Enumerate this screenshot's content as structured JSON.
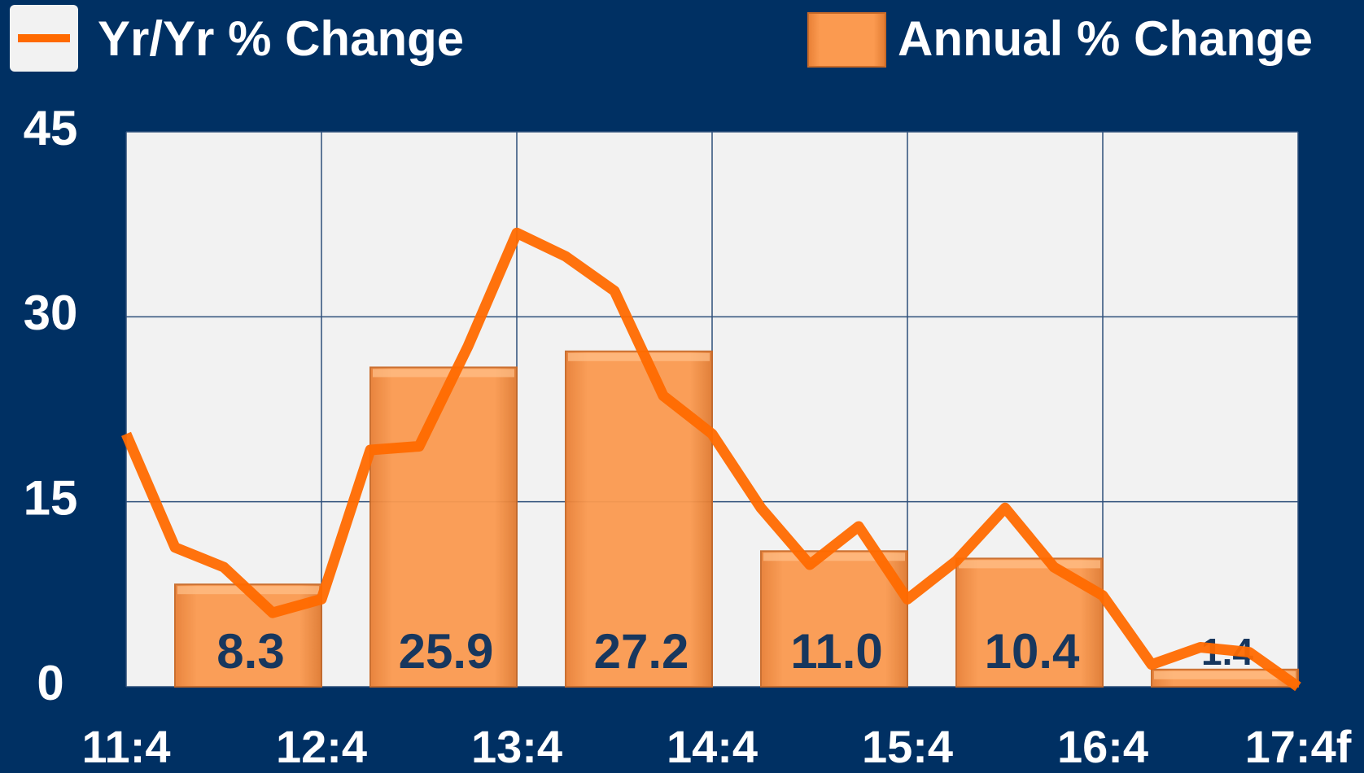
{
  "chart_data": {
    "type": "combo",
    "xlim": [
      0,
      24
    ],
    "xticks": [
      {
        "value": 0,
        "label": "11:4"
      },
      {
        "value": 4,
        "label": "12:4"
      },
      {
        "value": 8,
        "label": "13:4"
      },
      {
        "value": 12,
        "label": "14:4"
      },
      {
        "value": 16,
        "label": "15:4"
      },
      {
        "value": 20,
        "label": "16:4"
      },
      {
        "value": 24,
        "label": "17:4f"
      }
    ],
    "ylim": [
      0,
      45
    ],
    "yticks": [
      0,
      15,
      30,
      45
    ],
    "grid": true,
    "series": [
      {
        "name": "Yr/Yr % Change",
        "type": "line",
        "color": "#ff6a00",
        "x": [
          0,
          1,
          2,
          3,
          4,
          5,
          6,
          7,
          8,
          9,
          10,
          11,
          12,
          13,
          14,
          15,
          16,
          17,
          18,
          19,
          20,
          21,
          22,
          23,
          24
        ],
        "values": [
          20.5,
          11.3,
          9.7,
          6.0,
          7.1,
          19.2,
          19.5,
          27.6,
          36.8,
          34.9,
          32.1,
          23.6,
          20.5,
          14.5,
          9.9,
          13.0,
          7.1,
          10.2,
          14.5,
          9.7,
          7.4,
          1.8,
          3.2,
          2.8,
          0
        ]
      },
      {
        "name": "Annual % Change",
        "type": "bar",
        "color": "#f79646",
        "x": [
          2.5,
          6.5,
          10.5,
          14.5,
          18.5,
          22.5
        ],
        "values": [
          8.3,
          25.9,
          27.2,
          11.0,
          10.4,
          1.4
        ],
        "value_labels": [
          "8.3",
          "25.9",
          "27.2",
          "11.0",
          "10.4",
          "1.4"
        ]
      }
    ]
  }
}
